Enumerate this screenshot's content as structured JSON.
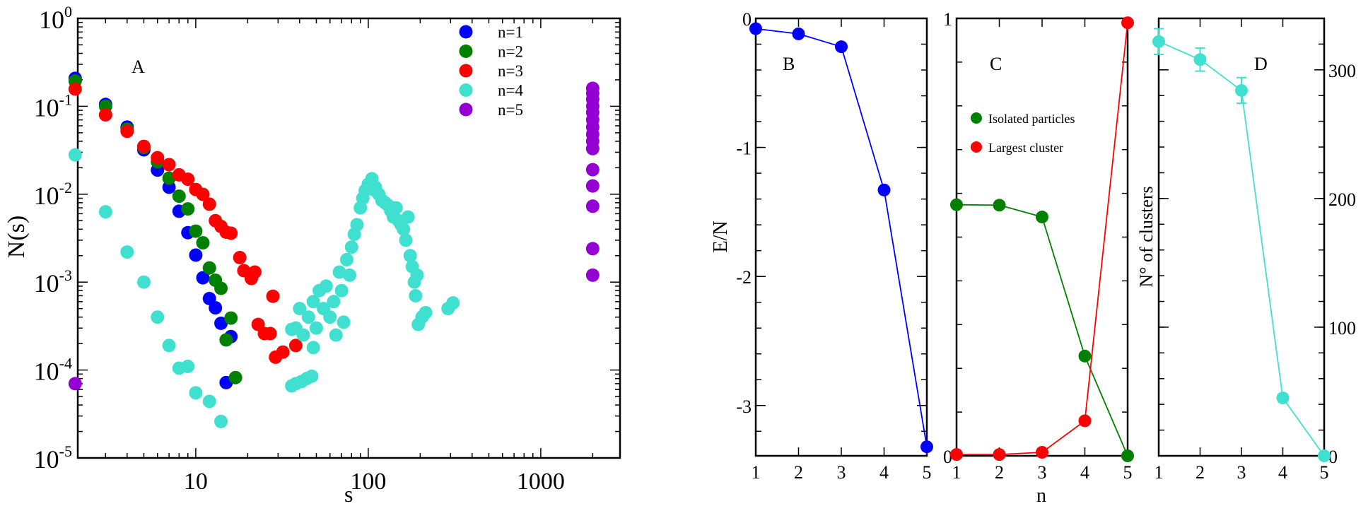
{
  "chart_data": [
    {
      "panel": "A",
      "type": "scatter",
      "xlabel": "s",
      "ylabel": "N(s)",
      "xscale": "log",
      "yscale": "log",
      "xlim": [
        2.07,
        2880
      ],
      "ylim": [
        1e-05,
        1
      ],
      "xticks": [
        {
          "value": 10,
          "label": "10"
        },
        {
          "value": 100,
          "label": "100"
        },
        {
          "value": 1000,
          "label": "1000"
        }
      ],
      "yticks": [
        {
          "value": 1,
          "base": "10",
          "exp": "0"
        },
        {
          "value": 0.1,
          "base": "10",
          "exp": "-1"
        },
        {
          "value": 0.01,
          "base": "10",
          "exp": "-2"
        },
        {
          "value": 0.001,
          "base": "10",
          "exp": "-3"
        },
        {
          "value": 0.0001,
          "base": "10",
          "exp": "-4"
        },
        {
          "value": 1e-05,
          "base": "10",
          "exp": "-5"
        }
      ],
      "legend_placement": "top-right",
      "series": [
        {
          "name": "n=1",
          "color": "#0000ff",
          "points": [
            [
              2,
              0.208
            ],
            [
              3,
              0.105
            ],
            [
              4,
              0.058
            ],
            [
              5,
              0.032
            ],
            [
              6,
              0.0188
            ],
            [
              7,
              0.012
            ],
            [
              8,
              0.0064
            ],
            [
              9,
              0.00365
            ],
            [
              10,
              0.00203
            ],
            [
              11,
              0.00112
            ],
            [
              12,
              0.00065
            ],
            [
              13,
              0.00051
            ],
            [
              14,
              0.00034
            ],
            [
              16,
              0.00024
            ],
            [
              15,
              7.2e-05
            ]
          ]
        },
        {
          "name": "n=2",
          "color": "#008000",
          "points": [
            [
              2,
              0.194
            ],
            [
              3,
              0.1
            ],
            [
              4,
              0.055
            ],
            [
              5,
              0.034
            ],
            [
              6,
              0.0233
            ],
            [
              7,
              0.0152
            ],
            [
              8,
              0.0095
            ],
            [
              9,
              0.0068
            ],
            [
              10,
              0.0038
            ],
            [
              11,
              0.0028
            ],
            [
              12,
              0.00145
            ],
            [
              13,
              0.00105
            ],
            [
              14,
              0.00085
            ],
            [
              16,
              0.00039
            ],
            [
              15,
              0.00022
            ],
            [
              17,
              8.2e-05
            ]
          ]
        },
        {
          "name": "n=3",
          "color": "#ff0000",
          "points": [
            [
              2,
              0.157
            ],
            [
              3,
              0.08
            ],
            [
              4,
              0.052
            ],
            [
              5,
              0.035
            ],
            [
              6,
              0.026
            ],
            [
              7,
              0.0217
            ],
            [
              8,
              0.0166
            ],
            [
              9,
              0.0148
            ],
            [
              10,
              0.0113
            ],
            [
              11,
              0.00995
            ],
            [
              12,
              0.0077
            ],
            [
              13,
              0.005
            ],
            [
              14,
              0.0043
            ],
            [
              15,
              0.0037
            ],
            [
              16,
              0.0036
            ],
            [
              18,
              0.0019
            ],
            [
              19,
              0.00135
            ],
            [
              21,
              0.0011
            ],
            [
              22,
              0.0013
            ],
            [
              28,
              0.00069
            ],
            [
              23,
              0.00033
            ],
            [
              25,
              0.00026
            ],
            [
              27,
              0.00026
            ],
            [
              29,
              0.00014
            ],
            [
              32,
              0.00016
            ],
            [
              38,
              0.00019
            ]
          ]
        },
        {
          "name": "n=4",
          "color": "#40e0d0",
          "points": [
            [
              2,
              0.028
            ],
            [
              3,
              0.0063
            ],
            [
              4,
              0.0022
            ],
            [
              5,
              0.001
            ],
            [
              6,
              0.0004
            ],
            [
              7,
              0.00019
            ],
            [
              8,
              0.000105
            ],
            [
              9,
              0.00011
            ],
            [
              10,
              5.5e-05
            ],
            [
              12,
              4.4e-05
            ],
            [
              14,
              2.6e-05
            ],
            [
              36,
              6.6e-05
            ],
            [
              38,
              7e-05
            ],
            [
              41,
              7.4e-05
            ],
            [
              44,
              8e-05
            ],
            [
              47,
              8.5e-05
            ],
            [
              36,
              0.00029
            ],
            [
              38,
              0.0003
            ],
            [
              40,
              0.0005
            ],
            [
              42,
              0.00025
            ],
            [
              45,
              0.0004
            ],
            [
              48,
              0.00018
            ],
            [
              48,
              0.0006
            ],
            [
              50,
              0.0003
            ],
            [
              52,
              0.0008
            ],
            [
              55,
              0.0005
            ],
            [
              57,
              0.0009
            ],
            [
              60,
              0.0004
            ],
            [
              63,
              0.0006
            ],
            [
              65,
              0.00025
            ],
            [
              68,
              0.0013
            ],
            [
              70,
              0.0008
            ],
            [
              72,
              0.00035
            ],
            [
              75,
              0.0018
            ],
            [
              78,
              0.0012
            ],
            [
              80,
              0.0025
            ],
            [
              83,
              0.0035
            ],
            [
              86,
              0.0045
            ],
            [
              90,
              0.007
            ],
            [
              93,
              0.009
            ],
            [
              96,
              0.011
            ],
            [
              100,
              0.013
            ],
            [
              100,
              0.012
            ],
            [
              105,
              0.015
            ],
            [
              110,
              0.012
            ],
            [
              110,
              0.011
            ],
            [
              115,
              0.01
            ],
            [
              120,
              0.0085
            ],
            [
              125,
              0.008
            ],
            [
              130,
              0.0075
            ],
            [
              135,
              0.0065
            ],
            [
              140,
              0.0055
            ],
            [
              145,
              0.007
            ],
            [
              150,
              0.005
            ],
            [
              155,
              0.0045
            ],
            [
              160,
              0.004
            ],
            [
              165,
              0.003
            ],
            [
              170,
              0.0055
            ],
            [
              175,
              0.002
            ],
            [
              180,
              0.0015
            ],
            [
              185,
              0.001
            ],
            [
              188,
              0.0007
            ],
            [
              192,
              0.0012
            ],
            [
              195,
              0.00033
            ],
            [
              205,
              0.0004
            ],
            [
              215,
              0.00045
            ],
            [
              290,
              0.0005
            ],
            [
              310,
              0.00058
            ]
          ]
        },
        {
          "name": "n=5",
          "color": "#9400d3",
          "points": [
            [
              2,
              7e-05
            ],
            [
              2000,
              0.16
            ],
            [
              2000,
              0.14
            ],
            [
              2000,
              0.12
            ],
            [
              2000,
              0.1
            ],
            [
              2000,
              0.085
            ],
            [
              2000,
              0.07
            ],
            [
              2000,
              0.058
            ],
            [
              2000,
              0.048
            ],
            [
              2000,
              0.04
            ],
            [
              2000,
              0.033
            ],
            [
              2000,
              0.019
            ],
            [
              2000,
              0.0124
            ],
            [
              2000,
              0.0073
            ],
            [
              2000,
              0.0024
            ],
            [
              2000,
              0.0012
            ]
          ]
        }
      ]
    },
    {
      "panel": "B",
      "type": "line",
      "ylabel": "E/N",
      "xlim": [
        1,
        5
      ],
      "ylim": [
        -3.39,
        0
      ],
      "xticks": [
        1,
        2,
        3,
        4,
        5
      ],
      "yticks": [
        {
          "value": 0,
          "label": "0"
        },
        {
          "value": -1,
          "label": "-1"
        },
        {
          "value": -2,
          "label": "-2"
        },
        {
          "value": -3,
          "label": "-3"
        }
      ],
      "series": [
        {
          "color": "#0000ff",
          "x": [
            1,
            2,
            3,
            4,
            5
          ],
          "y": [
            -0.08,
            -0.12,
            -0.22,
            -1.33,
            -3.32
          ]
        }
      ]
    },
    {
      "panel": "C",
      "type": "line",
      "xlabel": "n",
      "xlim": [
        1,
        5
      ],
      "ylim": [
        0,
        1
      ],
      "xticks": [
        1,
        2,
        3,
        4,
        5
      ],
      "yticks": [
        {
          "value": 0,
          "label": "0"
        },
        {
          "value": 1,
          "label": "1"
        }
      ],
      "legend_placement": "center-left",
      "series": [
        {
          "name": "Isolated particles",
          "color": "#008000",
          "x": [
            1,
            2,
            3,
            4,
            5
          ],
          "y": [
            0.574,
            0.573,
            0.546,
            0.228,
            0.0
          ]
        },
        {
          "name": "Largest cluster",
          "color": "#ff0000",
          "x": [
            1,
            2,
            3,
            4,
            5
          ],
          "y": [
            0.003,
            0.003,
            0.008,
            0.08,
            0.99
          ]
        }
      ]
    },
    {
      "panel": "D",
      "type": "line",
      "ylabel": "N° of clusters",
      "y_axis_side": "right",
      "xlim": [
        1,
        5
      ],
      "ylim": [
        0,
        340
      ],
      "xticks": [
        1,
        2,
        3,
        4,
        5
      ],
      "yticks": [
        {
          "value": 0,
          "label": "0"
        },
        {
          "value": 100,
          "label": "100"
        },
        {
          "value": 200,
          "label": "200"
        },
        {
          "value": 300,
          "label": "300"
        }
      ],
      "series": [
        {
          "color": "#40e0d0",
          "x": [
            1,
            2,
            3,
            4,
            5
          ],
          "y": [
            322,
            308,
            284,
            45,
            0
          ],
          "yerr": [
            10,
            9,
            10,
            3,
            0
          ]
        }
      ]
    }
  ]
}
